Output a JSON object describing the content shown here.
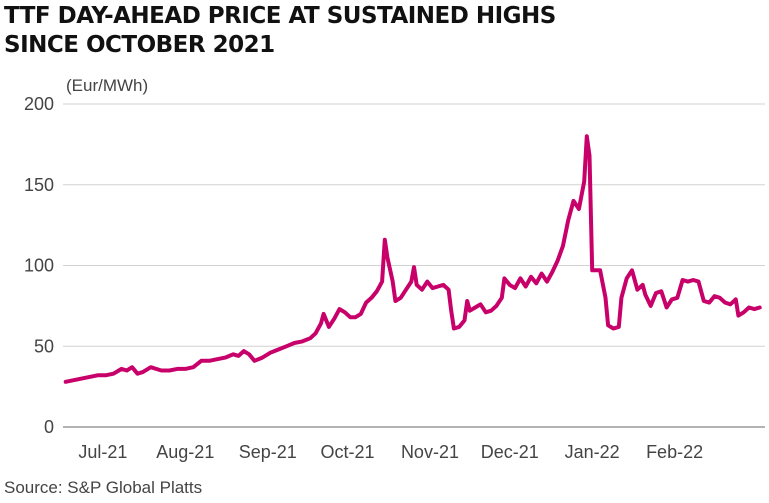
{
  "title_lines": [
    "TTF DAY-AHEAD PRICE AT SUSTAINED HIGHS",
    "SINCE OCTOBER 2021"
  ],
  "source": "Source: S&P Global Platts",
  "chart_data": {
    "type": "line",
    "title": "TTF DAY-AHEAD PRICE AT SUSTAINED HIGHS SINCE OCTOBER 2021",
    "ylabel": "(Eur/MWh)",
    "xlabel": "",
    "ylim": [
      0,
      200
    ],
    "yticks": [
      0,
      50,
      100,
      150,
      200
    ],
    "grid": "horizontal",
    "line_color": "#c8006a",
    "month_labels": [
      {
        "label": "Jul-21",
        "date": "2021-07-15"
      },
      {
        "label": "Aug-21",
        "date": "2021-08-15"
      },
      {
        "label": "Sep-21",
        "date": "2021-09-15"
      },
      {
        "label": "Oct-21",
        "date": "2021-10-15"
      },
      {
        "label": "Nov-21",
        "date": "2021-11-15"
      },
      {
        "label": "Dec-21",
        "date": "2021-12-15"
      },
      {
        "label": "Jan-22",
        "date": "2022-01-15"
      },
      {
        "label": "Feb-22",
        "date": "2022-02-15"
      }
    ],
    "series": [
      {
        "points": [
          [
            "2021-07-01",
            28
          ],
          [
            "2021-07-04",
            29
          ],
          [
            "2021-07-07",
            30
          ],
          [
            "2021-07-10",
            31
          ],
          [
            "2021-07-13",
            32
          ],
          [
            "2021-07-16",
            32
          ],
          [
            "2021-07-19",
            33
          ],
          [
            "2021-07-22",
            36
          ],
          [
            "2021-07-24",
            35
          ],
          [
            "2021-07-26",
            37
          ],
          [
            "2021-07-28",
            33
          ],
          [
            "2021-07-30",
            34
          ],
          [
            "2021-08-02",
            37
          ],
          [
            "2021-08-04",
            36
          ],
          [
            "2021-08-06",
            35
          ],
          [
            "2021-08-09",
            35
          ],
          [
            "2021-08-12",
            36
          ],
          [
            "2021-08-15",
            36
          ],
          [
            "2021-08-18",
            37
          ],
          [
            "2021-08-21",
            41
          ],
          [
            "2021-08-24",
            41
          ],
          [
            "2021-08-27",
            42
          ],
          [
            "2021-08-30",
            43
          ],
          [
            "2021-09-02",
            45
          ],
          [
            "2021-09-04",
            44
          ],
          [
            "2021-09-06",
            47
          ],
          [
            "2021-09-08",
            45
          ],
          [
            "2021-09-10",
            41
          ],
          [
            "2021-09-13",
            43
          ],
          [
            "2021-09-16",
            46
          ],
          [
            "2021-09-19",
            48
          ],
          [
            "2021-09-22",
            50
          ],
          [
            "2021-09-25",
            52
          ],
          [
            "2021-09-28",
            53
          ],
          [
            "2021-10-01",
            55
          ],
          [
            "2021-10-03",
            58
          ],
          [
            "2021-10-05",
            64
          ],
          [
            "2021-10-06",
            70
          ],
          [
            "2021-10-08",
            62
          ],
          [
            "2021-10-10",
            67
          ],
          [
            "2021-10-12",
            73
          ],
          [
            "2021-10-14",
            71
          ],
          [
            "2021-10-16",
            68
          ],
          [
            "2021-10-18",
            68
          ],
          [
            "2021-10-20",
            70
          ],
          [
            "2021-10-22",
            77
          ],
          [
            "2021-10-24",
            80
          ],
          [
            "2021-10-26",
            84
          ],
          [
            "2021-10-28",
            90
          ],
          [
            "2021-10-29",
            116
          ],
          [
            "2021-10-30",
            105
          ],
          [
            "2021-11-01",
            90
          ],
          [
            "2021-11-02",
            78
          ],
          [
            "2021-11-04",
            80
          ],
          [
            "2021-11-06",
            85
          ],
          [
            "2021-11-08",
            90
          ],
          [
            "2021-11-09",
            99
          ],
          [
            "2021-11-10",
            88
          ],
          [
            "2021-11-12",
            85
          ],
          [
            "2021-11-14",
            90
          ],
          [
            "2021-11-16",
            86
          ],
          [
            "2021-11-18",
            87
          ],
          [
            "2021-11-20",
            88
          ],
          [
            "2021-11-22",
            85
          ],
          [
            "2021-11-23",
            72
          ],
          [
            "2021-11-24",
            61
          ],
          [
            "2021-11-26",
            62
          ],
          [
            "2021-11-28",
            66
          ],
          [
            "2021-11-29",
            78
          ],
          [
            "2021-11-30",
            72
          ],
          [
            "2021-12-02",
            74
          ],
          [
            "2021-12-04",
            76
          ],
          [
            "2021-12-06",
            71
          ],
          [
            "2021-12-08",
            72
          ],
          [
            "2021-12-10",
            75
          ],
          [
            "2021-12-12",
            80
          ],
          [
            "2021-12-13",
            92
          ],
          [
            "2021-12-15",
            88
          ],
          [
            "2021-12-17",
            86
          ],
          [
            "2021-12-19",
            92
          ],
          [
            "2021-12-21",
            87
          ],
          [
            "2021-12-23",
            93
          ],
          [
            "2021-12-25",
            89
          ],
          [
            "2021-12-27",
            95
          ],
          [
            "2021-12-29",
            90
          ],
          [
            "2021-12-31",
            96
          ],
          [
            "2022-01-02",
            103
          ],
          [
            "2022-01-04",
            112
          ],
          [
            "2022-01-06",
            128
          ],
          [
            "2022-01-08",
            140
          ],
          [
            "2022-01-10",
            135
          ],
          [
            "2022-01-12",
            152
          ],
          [
            "2022-01-13",
            180
          ],
          [
            "2022-01-14",
            168
          ],
          [
            "2022-01-15",
            97
          ],
          [
            "2022-01-18",
            97
          ],
          [
            "2022-01-20",
            80
          ],
          [
            "2022-01-21",
            63
          ],
          [
            "2022-01-23",
            61
          ],
          [
            "2022-01-25",
            62
          ],
          [
            "2022-01-26",
            80
          ],
          [
            "2022-01-28",
            92
          ],
          [
            "2022-01-30",
            97
          ],
          [
            "2022-02-01",
            85
          ],
          [
            "2022-02-03",
            88
          ],
          [
            "2022-02-04",
            82
          ],
          [
            "2022-02-06",
            75
          ],
          [
            "2022-02-08",
            83
          ],
          [
            "2022-02-10",
            84
          ],
          [
            "2022-02-12",
            74
          ],
          [
            "2022-02-14",
            79
          ],
          [
            "2022-02-16",
            80
          ],
          [
            "2022-02-18",
            91
          ],
          [
            "2022-02-20",
            90
          ],
          [
            "2022-02-22",
            91
          ],
          [
            "2022-02-24",
            90
          ],
          [
            "2022-02-26",
            78
          ],
          [
            "2022-02-28",
            77
          ],
          [
            "2022-03-02",
            81
          ],
          [
            "2022-03-04",
            80
          ],
          [
            "2022-03-06",
            77
          ],
          [
            "2022-03-08",
            76
          ],
          [
            "2022-03-10",
            79
          ],
          [
            "2022-03-11",
            69
          ],
          [
            "2022-03-13",
            71
          ],
          [
            "2022-03-15",
            74
          ],
          [
            "2022-03-17",
            73
          ],
          [
            "2022-03-19",
            74
          ]
        ]
      }
    ]
  }
}
